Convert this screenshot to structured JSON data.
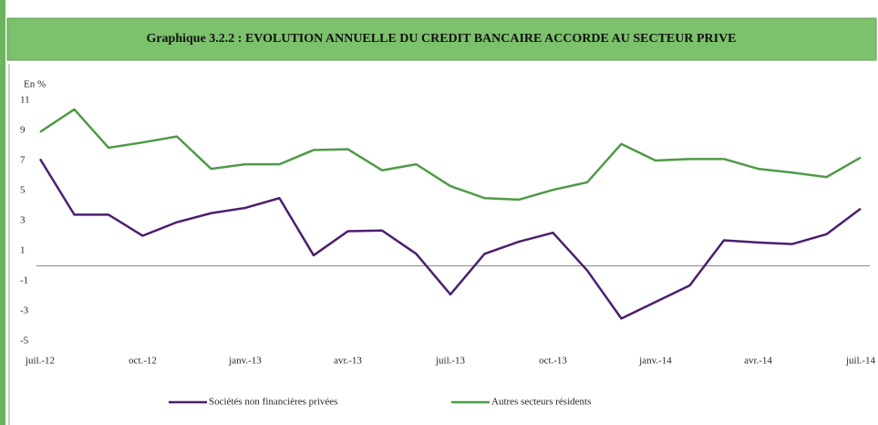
{
  "chart_data": {
    "type": "line",
    "title": "Graphique 3.2.2 : EVOLUTION ANNUELLE DU CREDIT BANCAIRE ACCORDE AU SECTEUR PRIVE",
    "y_label": "En %",
    "categories": [
      "juil.-12",
      null,
      null,
      "oct.-12",
      null,
      null,
      "janv.-13",
      null,
      null,
      "avr.-13",
      null,
      null,
      "juil.-13",
      null,
      null,
      "oct.-13",
      null,
      null,
      "janv.-14",
      null,
      null,
      "avr.-14",
      null,
      null,
      "juil.-14"
    ],
    "series": [
      {
        "name": "Sociétés non financières privées",
        "color": "#4b1f6f",
        "values": [
          7.1,
          3.4,
          3.4,
          2.0,
          2.9,
          3.5,
          3.85,
          4.5,
          0.7,
          2.3,
          2.35,
          0.8,
          -1.9,
          0.8,
          1.6,
          2.2,
          -0.3,
          -3.5,
          -2.4,
          -1.3,
          1.7,
          1.55,
          1.45,
          2.1,
          3.8
        ]
      },
      {
        "name": "Autres secteurs résidents",
        "color": "#4e9a47",
        "values": [
          8.9,
          10.4,
          7.85,
          8.2,
          8.6,
          6.45,
          6.75,
          6.75,
          7.7,
          7.75,
          6.35,
          6.75,
          5.3,
          4.5,
          4.4,
          5.05,
          5.55,
          8.1,
          7.0,
          7.1,
          7.1,
          6.45,
          6.2,
          5.9,
          7.2
        ]
      }
    ],
    "ylim": [
      -5,
      11
    ],
    "yticks": [
      -5,
      -3,
      -1,
      1,
      3,
      5,
      7,
      9,
      11
    ],
    "grid": false
  }
}
